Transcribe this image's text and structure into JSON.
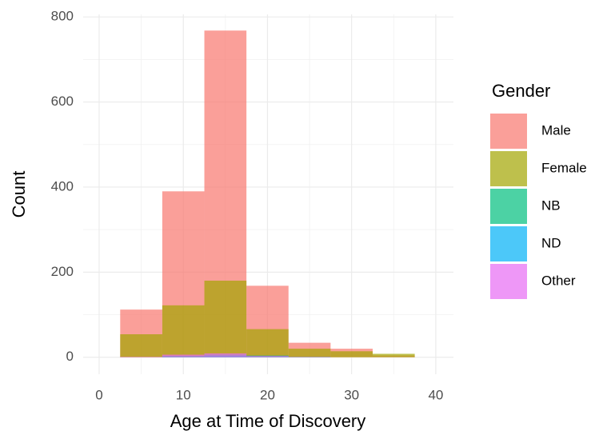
{
  "chart_data": {
    "type": "histogram",
    "x_label": "Age at Time of Discovery",
    "y_label": "Count",
    "legend_title": "Gender",
    "legend_position": "right",
    "bins": [
      2.5,
      7.5,
      12.5,
      17.5,
      22.5,
      27.5,
      32.5,
      37.5
    ],
    "series": [
      {
        "name": "Male",
        "color": "#F8766D",
        "values": [
          112,
          390,
          768,
          168,
          34,
          20,
          4
        ]
      },
      {
        "name": "Female",
        "color": "#A3A500",
        "values": [
          54,
          122,
          180,
          66,
          20,
          14,
          8
        ]
      },
      {
        "name": "NB",
        "color": "#00BF7D",
        "values": [
          0,
          3,
          6,
          4,
          1,
          0,
          0
        ]
      },
      {
        "name": "ND",
        "color": "#00B0F6",
        "values": [
          0,
          2,
          3,
          2,
          0,
          0,
          0
        ]
      },
      {
        "name": "Other",
        "color": "#E76BF3",
        "values": [
          1,
          6,
          9,
          3,
          1,
          0,
          0
        ]
      }
    ],
    "alpha": 0.7,
    "xlim": [
      -1.9,
      42.1
    ],
    "xticks": [
      0,
      10,
      20,
      30,
      40
    ],
    "ylim": [
      -40,
      806
    ],
    "yticks": [
      0,
      200,
      400,
      600,
      800
    ],
    "grid": true
  }
}
